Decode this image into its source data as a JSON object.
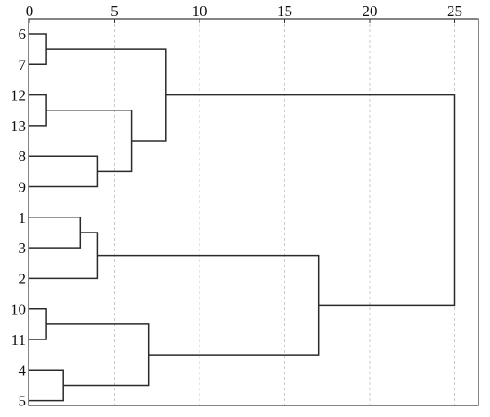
{
  "chart_data": {
    "type": "dendrogram",
    "orientation": "horizontal",
    "x_ticks": [
      0,
      5,
      10,
      15,
      20,
      25
    ],
    "xlim": [
      0,
      26.5
    ],
    "grid": "vertical dashed",
    "leaves": [
      "6",
      "7",
      "12",
      "13",
      "8",
      "9",
      "1",
      "3",
      "2",
      "10",
      "11",
      "4",
      "5"
    ],
    "merges": [
      {
        "items": [
          "6",
          "7"
        ],
        "height": 1
      },
      {
        "items": [
          "12",
          "13"
        ],
        "height": 1
      },
      {
        "items": [
          "10",
          "11"
        ],
        "height": 1
      },
      {
        "items": [
          "4",
          "5"
        ],
        "height": 2
      },
      {
        "items": [
          "1",
          "3"
        ],
        "height": 3
      },
      {
        "items": [
          "8",
          "9"
        ],
        "height": 4
      },
      {
        "items": [
          "1-3",
          "2"
        ],
        "height": 4
      },
      {
        "items": [
          "12-13",
          "8-9"
        ],
        "height": 6
      },
      {
        "items": [
          "10-11",
          "4-5"
        ],
        "height": 7
      },
      {
        "items": [
          "6-7",
          "12-13-8-9"
        ],
        "height": 8
      },
      {
        "items": [
          "1-3-2",
          "10-11-4-5"
        ],
        "height": 17
      },
      {
        "items": [
          "6-7-12-13-8-9",
          "1-3-2-10-11-4-5"
        ],
        "height": 25
      }
    ]
  }
}
